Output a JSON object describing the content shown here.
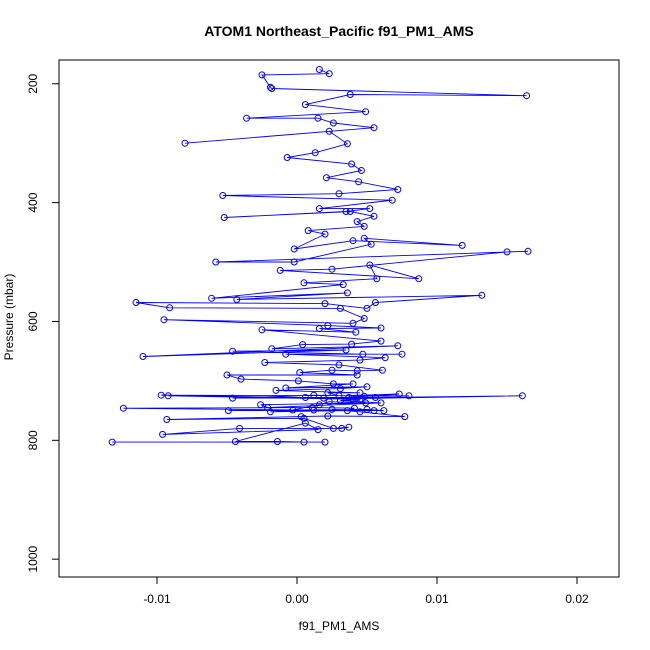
{
  "chart_data": {
    "type": "line",
    "title": "ATOM1 Northeast_Pacific f91_PM1_AMS",
    "xlabel": "f91_PM1_AMS",
    "ylabel": "Pressure (mbar)",
    "xlim": [
      -0.017,
      0.023
    ],
    "ylim": [
      1030,
      160
    ],
    "y_reversed": true,
    "x_ticks": [
      -0.01,
      0.0,
      0.01,
      0.02
    ],
    "x_tick_labels": [
      "-0.01",
      "0.00",
      "0.01",
      "0.02"
    ],
    "y_ticks": [
      200,
      400,
      600,
      800,
      1000
    ],
    "y_tick_labels": [
      "200",
      "400",
      "600",
      "800",
      "1000"
    ],
    "grid": false,
    "legend": "none",
    "color": "#0000ff",
    "series": [
      {
        "points": [
          [
            -0.0132,
            803
          ],
          [
            0.002,
            803
          ],
          [
            0.0005,
            803
          ],
          [
            -0.0014,
            802
          ],
          [
            -0.0044,
            802
          ],
          [
            0.0006,
            771
          ],
          [
            0.0015,
            782
          ],
          [
            -0.0096,
            790
          ],
          [
            -0.0041,
            780
          ],
          [
            0.0032,
            780
          ],
          [
            0.0037,
            778
          ],
          [
            0.0026,
            780
          ],
          [
            0.0005,
            763
          ],
          [
            -0.0093,
            765
          ],
          [
            0.0003,
            760
          ],
          [
            0.0022,
            759
          ],
          [
            0.0077,
            760
          ],
          [
            0.0045,
            752
          ],
          [
            0.0025,
            748
          ],
          [
            0.0055,
            750
          ],
          [
            -0.0049,
            750
          ],
          [
            0.005,
            748
          ],
          [
            0.0062,
            750
          ],
          [
            0.0012,
            749
          ],
          [
            -0.0019,
            752
          ],
          [
            0.0036,
            750
          ],
          [
            0.0041,
            746
          ],
          [
            0.0011,
            745
          ],
          [
            -0.0124,
            746
          ],
          [
            -0.0003,
            749
          ],
          [
            0.0016,
            740
          ],
          [
            0.0023,
            735
          ],
          [
            0.0049,
            737
          ],
          [
            -0.0026,
            740
          ],
          [
            -0.0021,
            745
          ],
          [
            0.006,
            737
          ],
          [
            0.0031,
            733
          ],
          [
            0.0045,
            731
          ],
          [
            -0.0092,
            725
          ],
          [
            0.0006,
            728
          ],
          [
            0.0056,
            728
          ],
          [
            0.0161,
            725
          ],
          [
            0.0039,
            730
          ],
          [
            0.0019,
            729
          ],
          [
            -0.0097,
            724
          ],
          [
            0.008,
            725
          ],
          [
            0.0048,
            726
          ],
          [
            0.0012,
            724
          ],
          [
            -0.0046,
            729
          ],
          [
            0.0043,
            729
          ],
          [
            0.0037,
            728
          ],
          [
            0.0073,
            722
          ],
          [
            0.003,
            725
          ],
          [
            0.0022,
            720
          ],
          [
            0.0045,
            720
          ],
          [
            -0.0015,
            716
          ],
          [
            0.0031,
            713
          ],
          [
            0.005,
            710
          ],
          [
            -0.0008,
            712
          ],
          [
            0.004,
            705
          ],
          [
            0.0026,
            705
          ],
          [
            0.0001,
            700
          ],
          [
            -0.004,
            697
          ],
          [
            -0.005,
            690
          ],
          [
            0.0043,
            690
          ],
          [
            0.0002,
            686
          ],
          [
            0.0025,
            682
          ],
          [
            0.0043,
            683
          ],
          [
            0.0061,
            682
          ],
          [
            0.003,
            673
          ],
          [
            -0.0023,
            669
          ],
          [
            0.0045,
            665
          ],
          [
            0.0063,
            661
          ],
          [
            -0.0008,
            655
          ],
          [
            0.0075,
            655
          ],
          [
            0.0047,
            655
          ],
          [
            -0.0046,
            650
          ],
          [
            0.0035,
            648
          ],
          [
            -0.011,
            659
          ],
          [
            0.0072,
            641
          ],
          [
            -0.0018,
            646
          ],
          [
            0.0004,
            639
          ],
          [
            0.0039,
            638
          ],
          [
            0.006,
            633
          ],
          [
            -0.0025,
            614
          ],
          [
            0.0042,
            618
          ],
          [
            0.0016,
            612
          ],
          [
            0.006,
            611
          ],
          [
            0.0022,
            607
          ],
          [
            -0.0095,
            597
          ],
          [
            0.004,
            603
          ],
          [
            0.0048,
            595
          ],
          [
            0.0031,
            578
          ],
          [
            -0.0091,
            577
          ],
          [
            -0.0115,
            568
          ],
          [
            0.002,
            570
          ],
          [
            0.005,
            578
          ],
          [
            0.0056,
            568
          ],
          [
            0.0132,
            556
          ],
          [
            -0.0043,
            563
          ],
          [
            0.0036,
            552
          ],
          [
            -0.0061,
            561
          ],
          [
            0.0033,
            538
          ],
          [
            0.0005,
            535
          ],
          [
            0.0057,
            528
          ],
          [
            0.0052,
            505
          ],
          [
            0.0087,
            528
          ],
          [
            -0.0012,
            514
          ],
          [
            0.0025,
            512
          ],
          [
            0.015,
            483
          ],
          [
            0.0165,
            482
          ],
          [
            -0.0058,
            500
          ],
          [
            -0.0002,
            500
          ],
          [
            0.0053,
            470
          ],
          [
            0.0048,
            460
          ],
          [
            0.0118,
            472
          ],
          [
            0.004,
            464
          ],
          [
            -0.0002,
            478
          ],
          [
            0.002,
            453
          ],
          [
            0.0008,
            447
          ],
          [
            0.0048,
            440
          ],
          [
            0.0043,
            432
          ],
          [
            0.0055,
            423
          ],
          [
            0.0038,
            415
          ],
          [
            -0.0052,
            425
          ],
          [
            0.0035,
            415
          ],
          [
            0.0052,
            410
          ],
          [
            0.0016,
            410
          ],
          [
            0.0068,
            396
          ],
          [
            -0.0053,
            388
          ],
          [
            0.003,
            385
          ],
          [
            0.0072,
            378
          ],
          [
            0.0044,
            365
          ],
          [
            0.0021,
            358
          ],
          [
            0.0046,
            346
          ],
          [
            0.0039,
            335
          ],
          [
            -0.0007,
            324
          ],
          [
            0.0013,
            316
          ],
          [
            0.0036,
            301
          ],
          [
            0.0023,
            280
          ],
          [
            -0.008,
            300
          ],
          [
            0.0055,
            274
          ],
          [
            0.0026,
            266
          ],
          [
            0.0015,
            258
          ],
          [
            -0.0036,
            258
          ],
          [
            0.0049,
            247
          ],
          [
            0.0006,
            235
          ],
          [
            0.0038,
            218
          ],
          [
            0.0164,
            220
          ],
          [
            -0.0018,
            208
          ],
          [
            -0.0019,
            206
          ],
          [
            -0.0025,
            185
          ],
          [
            0.0023,
            183
          ],
          [
            0.0016,
            176
          ]
        ]
      }
    ]
  }
}
